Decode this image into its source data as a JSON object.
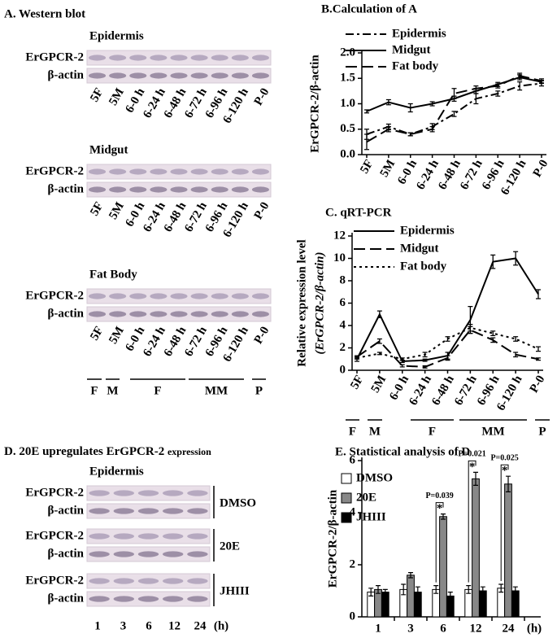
{
  "panels": {
    "a": {
      "title": "A. Western blot",
      "lanes": [
        "5F",
        "5M",
        "6-0 h",
        "6-24 h",
        "6-48 h",
        "6-72 h",
        "6-96 h",
        "6-120 h",
        "P-0"
      ],
      "groups": [
        "F",
        "M",
        "F",
        "MM",
        "P"
      ],
      "blots": [
        {
          "title": "Epidermis",
          "rows": [
            "ErGPCR-2",
            "β-actin"
          ]
        },
        {
          "title": "Midgut",
          "rows": [
            "ErGPCR-2",
            "β-actin"
          ]
        },
        {
          "title": "Fat Body",
          "rows": [
            "ErGPCR-2",
            "β-actin"
          ]
        }
      ]
    },
    "d": {
      "title": "D. 20E upregulates ErGPCR-2",
      "title_small": "expression",
      "subtitle": "Epidermis",
      "rows": [
        "ErGPCR-2",
        "β-actin"
      ],
      "treatments": [
        "DMSO",
        "20E",
        "JHIII"
      ],
      "times": [
        "1",
        "3",
        "6",
        "12",
        "24"
      ],
      "time_unit": "(h)"
    }
  },
  "chart_data": [
    {
      "type": "line",
      "title": "B.Calculation of A",
      "ylabel": "ErGPCR-2/β-actin",
      "categories": [
        "5F",
        "5M",
        "6-0 h",
        "6-24 h",
        "6-48 h",
        "6-72 h",
        "6-96 h",
        "6-120 h",
        "P-0"
      ],
      "ylim": [
        0,
        2
      ],
      "yticks": [
        {
          "value": 0,
          "label": "0.0"
        },
        0.5,
        {
          "value": 1,
          "label": "1.0"
        },
        1.5,
        {
          "value": 2,
          "label": "2.0"
        }
      ],
      "series": [
        {
          "name": "Epidermis",
          "color": "#000000",
          "style": "dash-dot",
          "values": [
            0.4,
            0.55,
            0.4,
            0.55,
            0.8,
            1.1,
            1.2,
            1.35,
            1.4
          ],
          "errors": [
            0.1,
            0.05,
            0.03,
            0.06,
            0.05,
            0.1,
            0.05,
            0.08,
            0.05
          ]
        },
        {
          "name": "Midgut",
          "color": "#000000",
          "style": "solid",
          "values": [
            0.85,
            1.03,
            0.92,
            1.0,
            1.1,
            1.25,
            1.38,
            1.52,
            1.43
          ],
          "errors": [
            0.03,
            0.05,
            0.08,
            0.04,
            0.05,
            0.05,
            0.04,
            0.05,
            0.03
          ]
        },
        {
          "name": "Fat body",
          "color": "#000000",
          "style": "dashed",
          "values": [
            0.25,
            0.5,
            0.4,
            0.5,
            1.2,
            1.3,
            1.35,
            1.55,
            1.45
          ],
          "errors": [
            0.15,
            0.05,
            0.03,
            0.05,
            0.1,
            0.05,
            0.04,
            0.05,
            0.04
          ]
        }
      ]
    },
    {
      "type": "line",
      "title": "C. qRT-PCR",
      "ylabel": "Relative expression level",
      "ylabel2": "(ErGPCR-2/β-actin)",
      "categories": [
        "5F",
        "5M",
        "6-0 h",
        "6-24 h",
        "6-48 h",
        "6-72 h",
        "6-96 h",
        "6-120 h",
        "P-0"
      ],
      "groups": [
        "F",
        "M",
        "F",
        "MM",
        "P"
      ],
      "ylim": [
        0,
        12
      ],
      "yticks": [
        0,
        2,
        4,
        6,
        8,
        10,
        12
      ],
      "series": [
        {
          "name": "Epidermis",
          "color": "#000000",
          "style": "solid",
          "values": [
            1.0,
            5.0,
            0.8,
            0.9,
            1.3,
            4.5,
            9.7,
            10.0,
            6.8
          ],
          "errors": [
            0.2,
            0.3,
            0.1,
            0.1,
            0.3,
            1.2,
            0.6,
            0.6,
            0.4
          ]
        },
        {
          "name": "Midgut",
          "color": "#000000",
          "style": "dashed",
          "values": [
            1.2,
            2.6,
            0.4,
            0.3,
            1.1,
            3.6,
            2.7,
            1.4,
            1.0
          ],
          "errors": [
            0.1,
            0.2,
            0.1,
            0.1,
            0.2,
            0.3,
            0.2,
            0.2,
            0.1
          ]
        },
        {
          "name": "Fat body",
          "color": "#000000",
          "style": "dotted",
          "values": [
            1.1,
            1.5,
            1.0,
            1.4,
            2.8,
            3.8,
            3.3,
            2.8,
            1.9
          ],
          "errors": [
            0.1,
            0.1,
            0.1,
            0.2,
            0.2,
            0.3,
            0.2,
            0.2,
            0.2
          ]
        }
      ]
    },
    {
      "type": "bar",
      "title": "E. Statistical analysis of D",
      "ylabel": "ErGPCR-2/β-actin",
      "xlabel": "(h)",
      "categories": [
        "1",
        "3",
        "6",
        "12",
        "24"
      ],
      "ylim": [
        0,
        6
      ],
      "yticks": [
        0,
        2,
        4,
        6
      ],
      "series": [
        {
          "name": "DMSO",
          "color": "#ffffff",
          "values": [
            0.95,
            1.05,
            1.05,
            1.05,
            1.1
          ],
          "errors": [
            0.15,
            0.2,
            0.15,
            0.15,
            0.15
          ]
        },
        {
          "name": "20E",
          "color": "#888888",
          "values": [
            1.05,
            1.6,
            3.85,
            5.3,
            5.1
          ],
          "errors": [
            0.15,
            0.1,
            0.1,
            0.25,
            0.3
          ]
        },
        {
          "name": "JHIII",
          "color": "#000000",
          "values": [
            0.95,
            0.95,
            0.8,
            1.0,
            1.0
          ],
          "errors": [
            0.1,
            0.2,
            0.15,
            0.15,
            0.15
          ]
        }
      ],
      "annotations": [
        {
          "category": "6",
          "text": "P=0.039",
          "mark": "*"
        },
        {
          "category": "12",
          "text": "P=0.021",
          "mark": "*"
        },
        {
          "category": "24",
          "text": "P=0.025",
          "mark": "*"
        }
      ]
    }
  ]
}
